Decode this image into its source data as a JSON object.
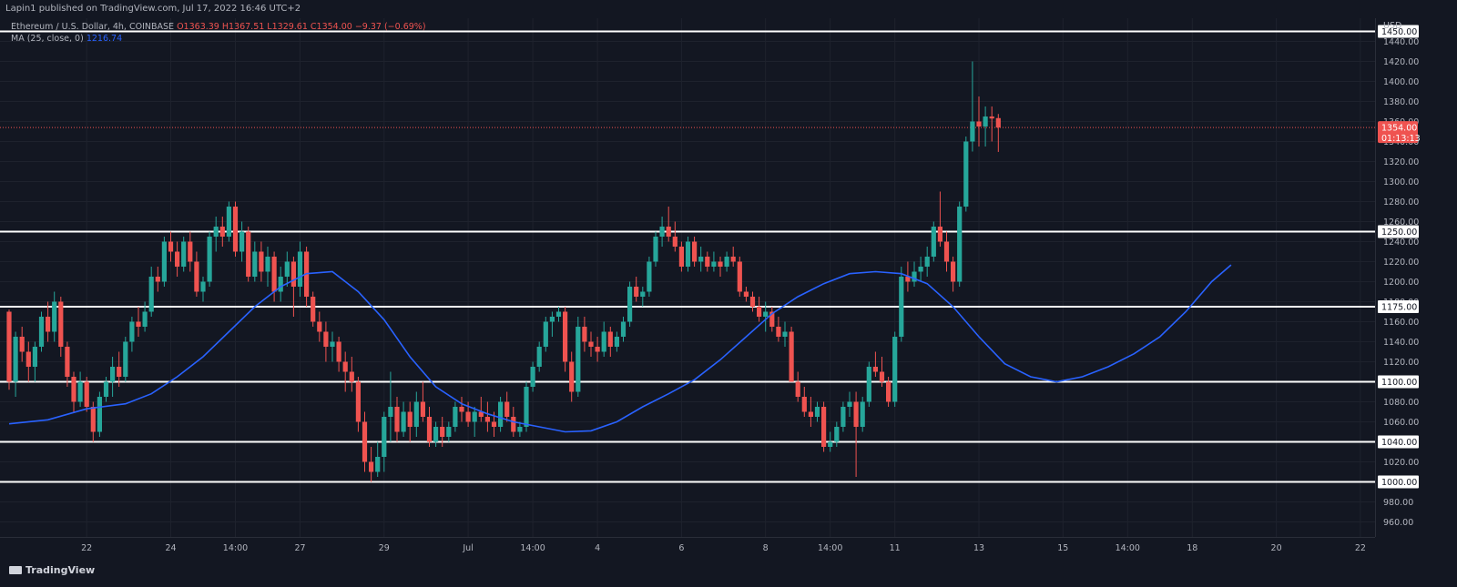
{
  "header": {
    "publisher": "Lapin1 published on TradingView.com, Jul 17, 2022 16:46 UTC+2"
  },
  "legend": {
    "symbol": "Ethereum / U.S. Dollar, 4h, COINBASE",
    "ohlc": "O1363.39  H1367.51  L1329.61  C1354.00  −9.37 (−0.69%)",
    "ma_label": "MA (25, close, 0)",
    "ma_value": "1216.74"
  },
  "footer": {
    "brand": "TradingView"
  },
  "colors": {
    "up": "#26a69a",
    "down": "#ef5350",
    "ma": "#2962ff",
    "bg": "#131722",
    "grid": "#1e222d"
  },
  "chart_data": {
    "type": "candlestick",
    "x_unit": "4h bars",
    "y_currency": "USD",
    "ylim": [
      945,
      1465
    ],
    "yticks": [
      960,
      980,
      1000,
      1020,
      1040,
      1060,
      1080,
      1100,
      1120,
      1140,
      1160,
      1180,
      1200,
      1220,
      1240,
      1260,
      1280,
      1300,
      1320,
      1340,
      1360,
      1380,
      1400,
      1420,
      1440
    ],
    "xticks": [
      {
        "label": "22",
        "bar": 12
      },
      {
        "label": "24",
        "bar": 25
      },
      {
        "label": "14:00",
        "bar": 35
      },
      {
        "label": "27",
        "bar": 45
      },
      {
        "label": "29",
        "bar": 58
      },
      {
        "label": "Jul",
        "bar": 71
      },
      {
        "label": "14:00",
        "bar": 81
      },
      {
        "label": "4",
        "bar": 91
      },
      {
        "label": "6",
        "bar": 104
      },
      {
        "label": "8",
        "bar": 117
      },
      {
        "label": "14:00",
        "bar": 127
      },
      {
        "label": "11",
        "bar": 137
      },
      {
        "label": "13",
        "bar": 150
      },
      {
        "label": "15",
        "bar": 163
      },
      {
        "label": "14:00",
        "bar": 173
      },
      {
        "label": "18",
        "bar": 183
      },
      {
        "label": "20",
        "bar": 196
      },
      {
        "label": "22",
        "bar": 209
      }
    ],
    "levels": [
      {
        "value": 1450,
        "label": "1450.00"
      },
      {
        "value": 1250,
        "label": "1250.00"
      },
      {
        "value": 1175,
        "label": "1175.00"
      },
      {
        "value": 1100,
        "label": "1100.00"
      },
      {
        "value": 1040,
        "label": "1040.00"
      },
      {
        "value": 1000,
        "label": "1000.00"
      }
    ],
    "last_price": {
      "value": 1354,
      "label": "1354.00",
      "timer": "01:13:13"
    },
    "candles": [
      [
        1170,
        1172,
        1092,
        1100
      ],
      [
        1100,
        1150,
        1085,
        1145
      ],
      [
        1145,
        1155,
        1120,
        1130
      ],
      [
        1130,
        1140,
        1100,
        1115
      ],
      [
        1115,
        1140,
        1100,
        1135
      ],
      [
        1135,
        1170,
        1130,
        1165
      ],
      [
        1165,
        1180,
        1140,
        1150
      ],
      [
        1150,
        1190,
        1140,
        1180
      ],
      [
        1180,
        1185,
        1125,
        1135
      ],
      [
        1135,
        1140,
        1095,
        1105
      ],
      [
        1105,
        1110,
        1070,
        1080
      ],
      [
        1080,
        1110,
        1075,
        1100
      ],
      [
        1100,
        1105,
        1070,
        1075
      ],
      [
        1075,
        1080,
        1040,
        1050
      ],
      [
        1050,
        1090,
        1045,
        1085
      ],
      [
        1085,
        1105,
        1080,
        1100
      ],
      [
        1100,
        1125,
        1085,
        1115
      ],
      [
        1115,
        1130,
        1095,
        1105
      ],
      [
        1105,
        1145,
        1100,
        1140
      ],
      [
        1140,
        1165,
        1130,
        1160
      ],
      [
        1160,
        1175,
        1145,
        1155
      ],
      [
        1155,
        1180,
        1150,
        1170
      ],
      [
        1170,
        1215,
        1165,
        1205
      ],
      [
        1205,
        1215,
        1190,
        1200
      ],
      [
        1200,
        1245,
        1195,
        1240
      ],
      [
        1240,
        1250,
        1220,
        1230
      ],
      [
        1230,
        1240,
        1205,
        1215
      ],
      [
        1215,
        1245,
        1210,
        1240
      ],
      [
        1240,
        1250,
        1210,
        1220
      ],
      [
        1220,
        1230,
        1185,
        1190
      ],
      [
        1190,
        1205,
        1180,
        1200
      ],
      [
        1200,
        1250,
        1195,
        1245
      ],
      [
        1245,
        1265,
        1230,
        1255
      ],
      [
        1255,
        1265,
        1235,
        1245
      ],
      [
        1245,
        1280,
        1240,
        1275
      ],
      [
        1275,
        1280,
        1225,
        1230
      ],
      [
        1230,
        1260,
        1220,
        1250
      ],
      [
        1250,
        1255,
        1200,
        1205
      ],
      [
        1205,
        1240,
        1200,
        1230
      ],
      [
        1230,
        1240,
        1200,
        1210
      ],
      [
        1210,
        1235,
        1195,
        1225
      ],
      [
        1225,
        1230,
        1180,
        1190
      ],
      [
        1190,
        1215,
        1180,
        1205
      ],
      [
        1205,
        1230,
        1195,
        1220
      ],
      [
        1220,
        1225,
        1165,
        1195
      ],
      [
        1195,
        1240,
        1185,
        1230
      ],
      [
        1230,
        1235,
        1175,
        1185
      ],
      [
        1185,
        1190,
        1155,
        1160
      ],
      [
        1160,
        1170,
        1140,
        1150
      ],
      [
        1150,
        1160,
        1120,
        1135
      ],
      [
        1135,
        1150,
        1120,
        1140
      ],
      [
        1140,
        1145,
        1110,
        1120
      ],
      [
        1120,
        1130,
        1090,
        1110
      ],
      [
        1110,
        1125,
        1090,
        1100
      ],
      [
        1100,
        1105,
        1050,
        1060
      ],
      [
        1060,
        1070,
        1010,
        1020
      ],
      [
        1020,
        1035,
        1000,
        1010
      ],
      [
        1010,
        1040,
        1005,
        1025
      ],
      [
        1025,
        1070,
        1010,
        1065
      ],
      [
        1065,
        1110,
        1040,
        1075
      ],
      [
        1075,
        1085,
        1040,
        1050
      ],
      [
        1050,
        1080,
        1045,
        1070
      ],
      [
        1070,
        1080,
        1040,
        1055
      ],
      [
        1055,
        1090,
        1045,
        1080
      ],
      [
        1080,
        1100,
        1060,
        1065
      ],
      [
        1065,
        1075,
        1035,
        1040
      ],
      [
        1040,
        1060,
        1035,
        1055
      ],
      [
        1055,
        1065,
        1035,
        1045
      ],
      [
        1045,
        1060,
        1040,
        1055
      ],
      [
        1055,
        1080,
        1050,
        1075
      ],
      [
        1075,
        1085,
        1060,
        1070
      ],
      [
        1070,
        1080,
        1055,
        1060
      ],
      [
        1060,
        1075,
        1045,
        1070
      ],
      [
        1070,
        1085,
        1060,
        1065
      ],
      [
        1065,
        1080,
        1050,
        1060
      ],
      [
        1060,
        1070,
        1045,
        1055
      ],
      [
        1055,
        1085,
        1050,
        1080
      ],
      [
        1080,
        1090,
        1060,
        1065
      ],
      [
        1065,
        1075,
        1045,
        1050
      ],
      [
        1050,
        1060,
        1045,
        1055
      ],
      [
        1055,
        1100,
        1050,
        1095
      ],
      [
        1095,
        1120,
        1090,
        1115
      ],
      [
        1115,
        1140,
        1110,
        1135
      ],
      [
        1135,
        1165,
        1130,
        1160
      ],
      [
        1160,
        1170,
        1145,
        1165
      ],
      [
        1165,
        1175,
        1160,
        1170
      ],
      [
        1170,
        1175,
        1110,
        1120
      ],
      [
        1120,
        1130,
        1080,
        1090
      ],
      [
        1090,
        1165,
        1085,
        1155
      ],
      [
        1155,
        1165,
        1130,
        1140
      ],
      [
        1140,
        1150,
        1125,
        1135
      ],
      [
        1135,
        1145,
        1120,
        1130
      ],
      [
        1130,
        1160,
        1125,
        1150
      ],
      [
        1150,
        1155,
        1125,
        1135
      ],
      [
        1135,
        1150,
        1130,
        1145
      ],
      [
        1145,
        1165,
        1140,
        1160
      ],
      [
        1160,
        1200,
        1155,
        1195
      ],
      [
        1195,
        1205,
        1180,
        1185
      ],
      [
        1185,
        1195,
        1175,
        1190
      ],
      [
        1190,
        1225,
        1185,
        1220
      ],
      [
        1220,
        1250,
        1215,
        1245
      ],
      [
        1245,
        1265,
        1235,
        1255
      ],
      [
        1255,
        1275,
        1240,
        1245
      ],
      [
        1245,
        1260,
        1230,
        1235
      ],
      [
        1235,
        1240,
        1210,
        1215
      ],
      [
        1215,
        1245,
        1210,
        1240
      ],
      [
        1240,
        1245,
        1215,
        1220
      ],
      [
        1220,
        1235,
        1210,
        1225
      ],
      [
        1225,
        1230,
        1210,
        1215
      ],
      [
        1215,
        1230,
        1210,
        1220
      ],
      [
        1220,
        1225,
        1205,
        1215
      ],
      [
        1215,
        1230,
        1210,
        1225
      ],
      [
        1225,
        1235,
        1215,
        1220
      ],
      [
        1220,
        1225,
        1185,
        1190
      ],
      [
        1190,
        1195,
        1180,
        1185
      ],
      [
        1185,
        1190,
        1170,
        1175
      ],
      [
        1175,
        1185,
        1160,
        1165
      ],
      [
        1165,
        1180,
        1150,
        1170
      ],
      [
        1170,
        1175,
        1150,
        1155
      ],
      [
        1155,
        1165,
        1140,
        1145
      ],
      [
        1145,
        1160,
        1135,
        1150
      ],
      [
        1150,
        1155,
        1100,
        1100
      ],
      [
        1100,
        1110,
        1080,
        1085
      ],
      [
        1085,
        1095,
        1065,
        1070
      ],
      [
        1070,
        1085,
        1055,
        1065
      ],
      [
        1065,
        1080,
        1060,
        1075
      ],
      [
        1075,
        1080,
        1030,
        1035
      ],
      [
        1035,
        1050,
        1030,
        1040
      ],
      [
        1040,
        1060,
        1035,
        1055
      ],
      [
        1055,
        1080,
        1050,
        1075
      ],
      [
        1075,
        1090,
        1065,
        1080
      ],
      [
        1080,
        1090,
        1005,
        1055
      ],
      [
        1055,
        1085,
        1050,
        1080
      ],
      [
        1080,
        1120,
        1075,
        1115
      ],
      [
        1115,
        1130,
        1105,
        1110
      ],
      [
        1110,
        1125,
        1095,
        1100
      ],
      [
        1100,
        1105,
        1075,
        1080
      ],
      [
        1080,
        1150,
        1075,
        1145
      ],
      [
        1145,
        1215,
        1140,
        1205
      ],
      [
        1205,
        1220,
        1190,
        1200
      ],
      [
        1200,
        1220,
        1195,
        1210
      ],
      [
        1210,
        1225,
        1200,
        1215
      ],
      [
        1215,
        1235,
        1205,
        1225
      ],
      [
        1225,
        1260,
        1220,
        1255
      ],
      [
        1255,
        1290,
        1235,
        1240
      ],
      [
        1240,
        1250,
        1210,
        1220
      ],
      [
        1220,
        1225,
        1190,
        1200
      ],
      [
        1200,
        1280,
        1195,
        1275
      ],
      [
        1275,
        1345,
        1270,
        1340
      ],
      [
        1340,
        1420,
        1330,
        1360
      ],
      [
        1360,
        1385,
        1335,
        1355
      ],
      [
        1355,
        1375,
        1335,
        1365
      ],
      [
        1365,
        1375,
        1340,
        1363
      ],
      [
        1363.39,
        1367.51,
        1329.61,
        1354
      ]
    ],
    "ma_points": [
      [
        0,
        1058
      ],
      [
        6,
        1062
      ],
      [
        12,
        1073
      ],
      [
        18,
        1078
      ],
      [
        22,
        1088
      ],
      [
        26,
        1105
      ],
      [
        30,
        1125
      ],
      [
        34,
        1150
      ],
      [
        38,
        1175
      ],
      [
        42,
        1195
      ],
      [
        46,
        1208
      ],
      [
        50,
        1210
      ],
      [
        54,
        1190
      ],
      [
        58,
        1162
      ],
      [
        62,
        1125
      ],
      [
        66,
        1095
      ],
      [
        70,
        1078
      ],
      [
        74,
        1068
      ],
      [
        78,
        1060
      ],
      [
        82,
        1055
      ],
      [
        86,
        1050
      ],
      [
        90,
        1051
      ],
      [
        94,
        1060
      ],
      [
        98,
        1075
      ],
      [
        102,
        1088
      ],
      [
        106,
        1102
      ],
      [
        110,
        1122
      ],
      [
        114,
        1145
      ],
      [
        118,
        1168
      ],
      [
        122,
        1185
      ],
      [
        126,
        1198
      ],
      [
        130,
        1208
      ],
      [
        134,
        1210
      ],
      [
        138,
        1208
      ],
      [
        142,
        1198
      ],
      [
        146,
        1175
      ],
      [
        150,
        1145
      ],
      [
        154,
        1118
      ],
      [
        158,
        1105
      ],
      [
        162,
        1100
      ],
      [
        166,
        1105
      ],
      [
        170,
        1115
      ],
      [
        174,
        1128
      ],
      [
        178,
        1145
      ],
      [
        182,
        1170
      ],
      [
        186,
        1200
      ],
      [
        189,
        1216.74
      ]
    ]
  }
}
